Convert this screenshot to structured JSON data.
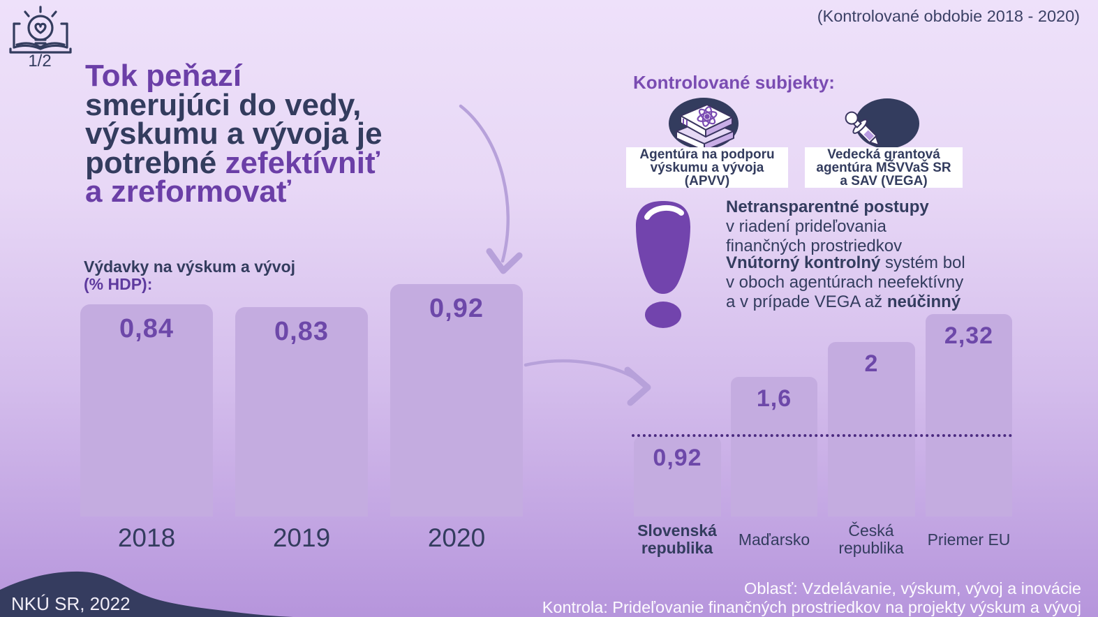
{
  "page": {
    "indicator": "1/2",
    "period": "(Kontrolované obdobie 2018 - 2020)"
  },
  "title": {
    "line1": "Tok peňazí",
    "line2": "smerujúci do vedy,",
    "line3": "výskumu a vývoja je",
    "line4_prefix": "potrebné ",
    "line4_highlight": "zefektívniť",
    "line5": "a zreformovať"
  },
  "subjects": {
    "heading": "Kontrolované subjekty:",
    "items": [
      {
        "icon": "books-atom-icon",
        "label_lines": [
          "Agentúra na podporu",
          "výskumu a vývoja",
          "(APVV)"
        ]
      },
      {
        "icon": "dropper-icon",
        "label_lines": [
          "Vedecká grantová",
          "agentúra MŠVVaŠ SR",
          "a SAV (VEGA)"
        ]
      }
    ]
  },
  "findings": [
    {
      "bold": "Netransparentné postupy",
      "lines": [
        "v riadení prideľovania",
        "finančných prostriedkov"
      ]
    },
    {
      "bold": "Vnútorný kontrolný",
      "after_bold": " systém bol",
      "line2": "v oboch agentúrach neefektívny",
      "line3_prefix": "a v prípade VEGA až ",
      "line3_bold": "neúčinný"
    }
  ],
  "footer": {
    "source": "NKÚ SR, 2022",
    "line1": "Oblasť: Vzdelávanie, výskum, vývoj a inovácie",
    "line2": "Kontrola: Prideľovanie finančných prostriedkov na projekty výskum a vývoj"
  },
  "colors": {
    "accent_purple": "#6b3fa7",
    "navy": "#333c5e",
    "bar_fill": "#c4ace0",
    "bar_value": "#6d48a9",
    "exclamation": "#7244ad",
    "reference_line": "#4b2b80",
    "arrow": "#b7a1da",
    "background_top": "#eee1fa",
    "background_bottom": "#b695dc",
    "footer_blob": "#353c5f",
    "label_box": "#ffffff"
  },
  "chart_data": [
    {
      "type": "bar",
      "title": "Výdavky na výskum a vývoj",
      "subtitle": "(% HDP):",
      "categories": [
        "2018",
        "2019",
        "2020"
      ],
      "values": [
        0.84,
        0.83,
        0.92
      ],
      "value_labels": [
        "0,84",
        "0,83",
        "0,92"
      ],
      "ylim": [
        0,
        1
      ],
      "gridlines": false,
      "value_label_position": "inside-top"
    },
    {
      "type": "bar",
      "title": "",
      "categories": [
        "Slovenská republika",
        "Maďarsko",
        "Česká republika",
        "Priemer EU"
      ],
      "category_lines": [
        [
          "Slovenská",
          "republika"
        ],
        [
          "Maďarsko"
        ],
        [
          "Česká",
          "republika"
        ],
        [
          "Priemer EU"
        ]
      ],
      "values": [
        0.92,
        1.6,
        2.0,
        2.32
      ],
      "value_labels": [
        "0,92",
        "1,6",
        "2",
        "2,32"
      ],
      "reference_line": {
        "value": 0.92,
        "style": "dotted"
      },
      "ylim": [
        0,
        2.5
      ],
      "gridlines": false,
      "unit": "% HDP",
      "value_label_position": "inside-top"
    }
  ]
}
